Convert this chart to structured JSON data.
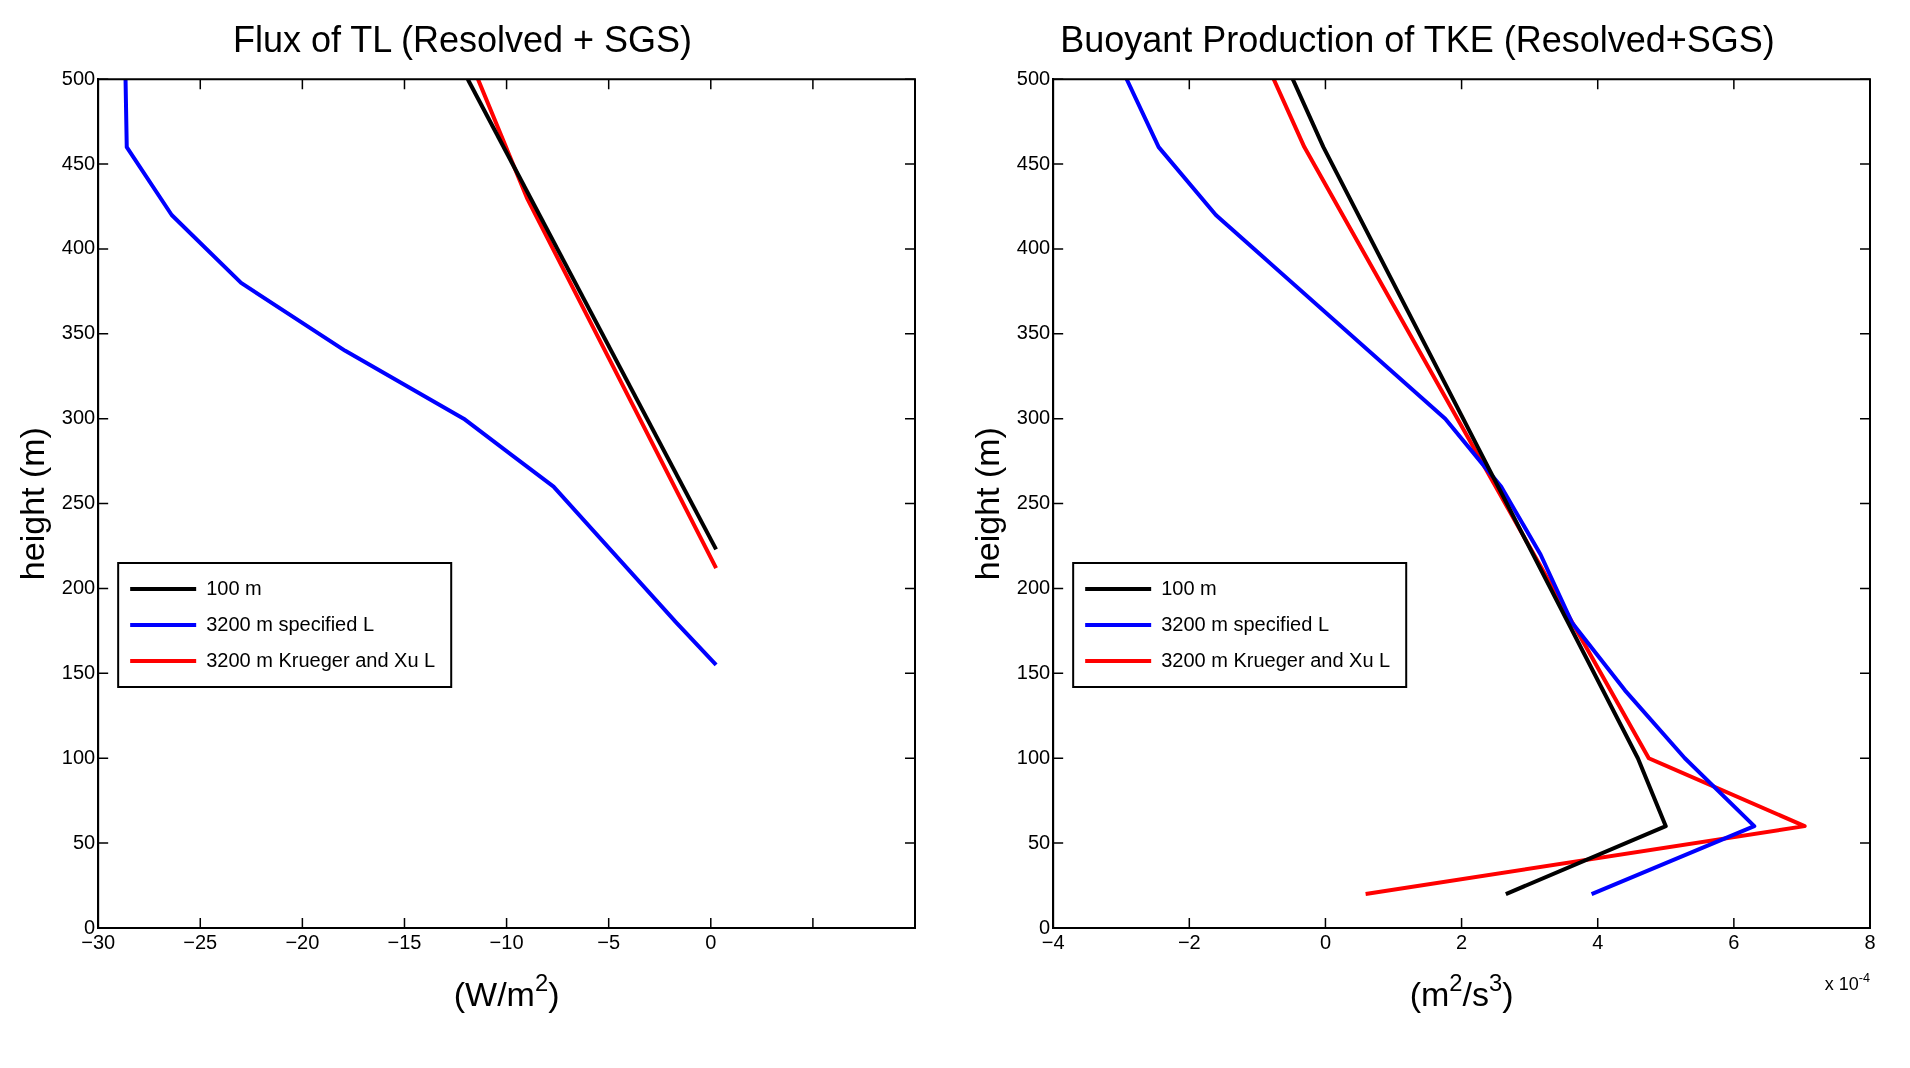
{
  "chart_data": [
    {
      "type": "line",
      "title": "Flux of TL (Resolved + SGS)",
      "xlabel": "(W/m$^{2}$)",
      "ylabel": "height (m)",
      "xlim": [
        -30,
        10
      ],
      "xticks": [
        {
          "value": -30,
          "label": "−30"
        },
        {
          "value": -25,
          "label": "−25"
        },
        {
          "value": -20,
          "label": "−20"
        },
        {
          "value": -15,
          "label": "−15"
        },
        {
          "value": -10,
          "label": "−10"
        },
        {
          "value": -5,
          "label": "−5"
        },
        0,
        {
          "value": 5,
          "label": null
        },
        {
          "value": 10,
          "label": null
        }
      ],
      "ylim": [
        0,
        500
      ],
      "yticks": [
        0,
        50,
        100,
        150,
        200,
        250,
        300,
        350,
        400,
        450,
        500
      ],
      "grid": false,
      "legend": "left",
      "marker": "none",
      "line_style": "solid",
      "series": [
        {
          "name": "100 m",
          "color": "#000000",
          "x": [
            -11.9,
            0.26
          ],
          "values": [
            500,
            223
          ]
        },
        {
          "name": "3200 m specified L",
          "color": "#0000ff",
          "x": [
            -28.66,
            -28.6,
            -26.4,
            -23.0,
            -17.9,
            -12.1,
            -7.7,
            -1.7,
            0.26
          ],
          "values": [
            500,
            460,
            420,
            380,
            340,
            300,
            260,
            180,
            155
          ]
        },
        {
          "name": "3200 m Krueger and Xu L",
          "color": "#ff0000",
          "x": [
            -11.4,
            -9.0,
            0.26
          ],
          "values": [
            500,
            430,
            212
          ]
        }
      ]
    },
    {
      "type": "line",
      "title": "Buoyant Production of TKE (Resolved+SGS)",
      "xlabel": "(m$^{2}$/s$^{3}$)",
      "ylabel": "height (m)",
      "xlim": [
        -4,
        8
      ],
      "xticks": [
        {
          "value": -4,
          "label": "−4"
        },
        {
          "value": -2,
          "label": "−2"
        },
        0,
        2,
        4,
        6,
        8
      ],
      "ylim": [
        0,
        500
      ],
      "yticks": [
        0,
        50,
        100,
        150,
        200,
        250,
        300,
        350,
        400,
        450,
        500
      ],
      "grid": false,
      "legend": "left",
      "marker": "none",
      "line_style": "solid",
      "annotations": [
        "x 10$^{-4}$"
      ],
      "series": [
        {
          "name": "100 m",
          "color": "#000000",
          "x": [
            -0.48,
            -0.03,
            4.59,
            5.0,
            2.65
          ],
          "values": [
            500,
            460,
            100,
            60,
            20
          ]
        },
        {
          "name": "3200 m specified L",
          "color": "#0000ff",
          "x": [
            -2.92,
            -2.45,
            -1.61,
            1.76,
            2.58,
            3.16,
            3.62,
            4.4,
            5.28,
            6.3,
            3.91
          ],
          "values": [
            500,
            460,
            420,
            300,
            260,
            220,
            180,
            140,
            100,
            60,
            20
          ]
        },
        {
          "name": "3200 m Krueger and Xu L",
          "color": "#ff0000",
          "x": [
            -0.76,
            -0.31,
            4.75,
            7.04,
            0.59
          ],
          "values": [
            500,
            460,
            100,
            60,
            20
          ]
        }
      ]
    }
  ]
}
